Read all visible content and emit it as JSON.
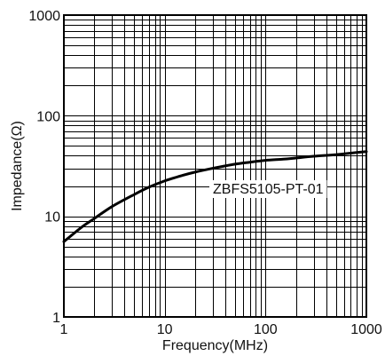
{
  "chart_data": {
    "type": "line",
    "xscale": "log",
    "yscale": "log",
    "xlim": [
      1,
      1000
    ],
    "ylim": [
      1,
      1000
    ],
    "xlabel": "Frequency(MHz)",
    "ylabel": "Impedance(Ω)",
    "x_ticks": [
      {
        "value": 1,
        "label": "1"
      },
      {
        "value": 10,
        "label": "10"
      },
      {
        "value": 100,
        "label": "100"
      },
      {
        "value": 1000,
        "label": "1000"
      }
    ],
    "y_ticks": [
      {
        "value": 1,
        "label": "1"
      },
      {
        "value": 10,
        "label": "10"
      },
      {
        "value": 100,
        "label": "100"
      },
      {
        "value": 1000,
        "label": "1000"
      }
    ],
    "grid": true,
    "annotation": "ZBFS5105-PT-01",
    "series": [
      {
        "name": "ZBFS5105-PT-01",
        "color": "#000000",
        "x": [
          1,
          1.5,
          2,
          3,
          5,
          7,
          10,
          15,
          20,
          30,
          50,
          70,
          100,
          150,
          200,
          300,
          500,
          700,
          1000
        ],
        "y": [
          5.6,
          7.8,
          9.5,
          12.5,
          16.5,
          19.5,
          22.5,
          25.5,
          27.5,
          30,
          33,
          34.5,
          36,
          37,
          38,
          39.5,
          41,
          42.5,
          44
        ]
      }
    ]
  }
}
